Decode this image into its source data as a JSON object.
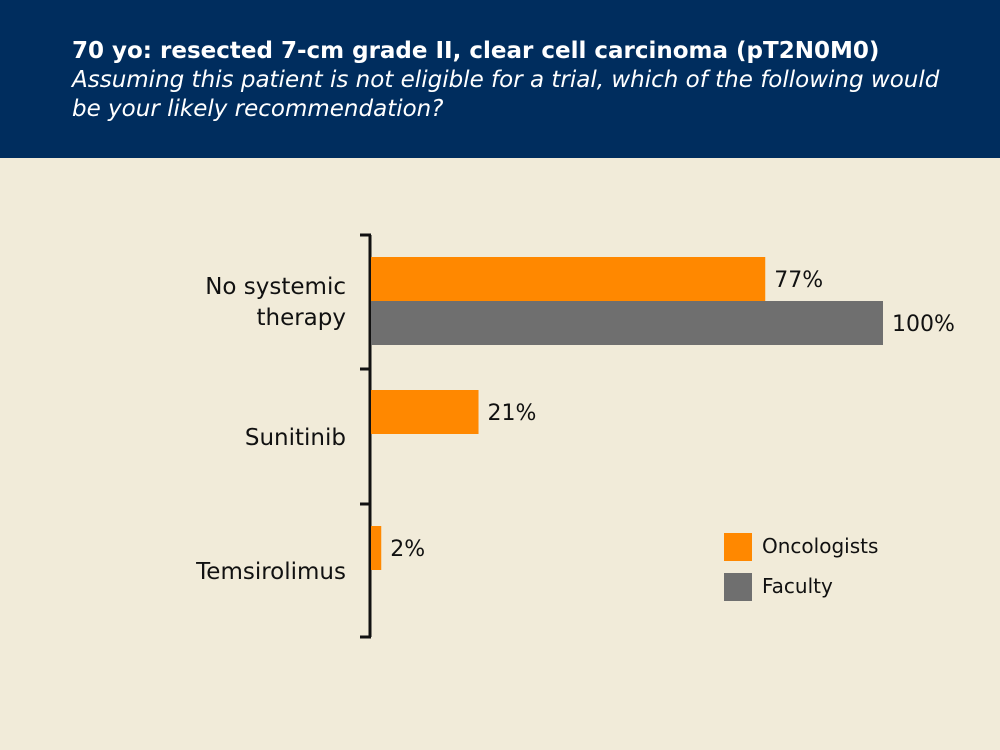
{
  "header": {
    "title": "70 yo: resected 7-cm grade II, clear cell carcinoma (pT2N0M0)",
    "subtitle": "Assuming this patient is not eligible for a trial, which of the following would be your likely recommendation?"
  },
  "chart_data": {
    "type": "bar",
    "orientation": "horizontal",
    "categories": [
      "No systemic therapy",
      "Sunitinib",
      "Temsirolimus"
    ],
    "series": [
      {
        "name": "Oncologists",
        "color": "#ff8800",
        "values": [
          77,
          21,
          2
        ]
      },
      {
        "name": "Faculty",
        "color": "#6f6f6f",
        "values": [
          100,
          null,
          null
        ]
      }
    ],
    "value_suffix": "%",
    "xlim": [
      0,
      100
    ],
    "grid": false,
    "legend_position": "bottom-right"
  }
}
